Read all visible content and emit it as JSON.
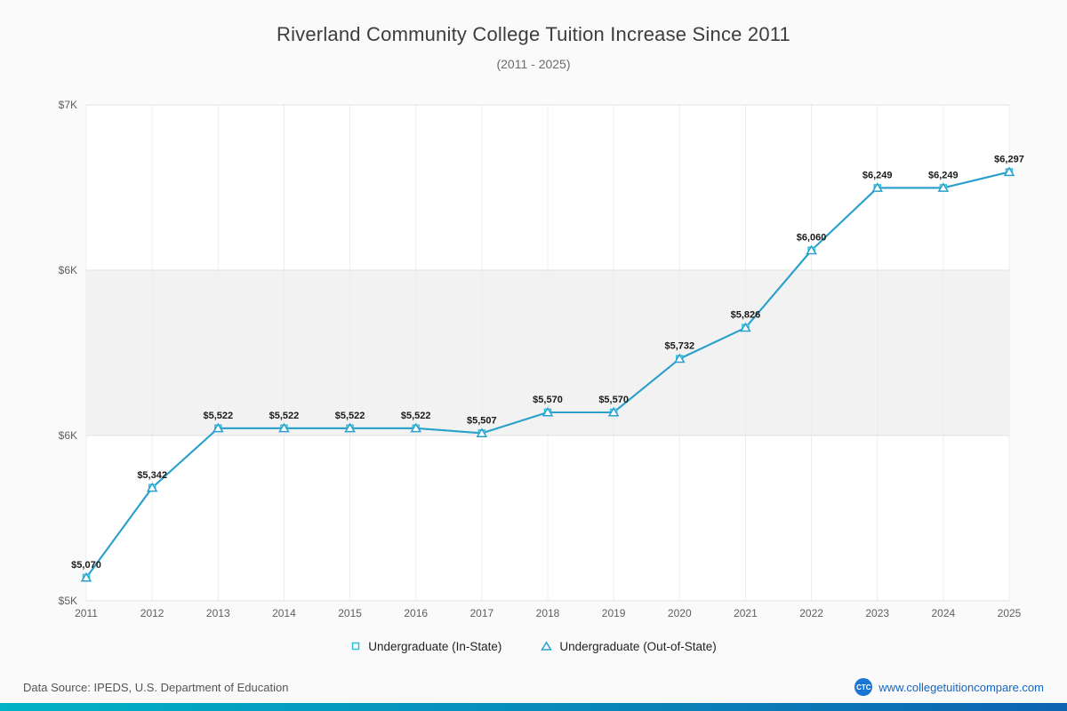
{
  "chart_data": {
    "type": "line",
    "title": "Riverland Community College Tuition Increase Since 2011",
    "subtitle": "(2011 - 2025)",
    "x": [
      2011,
      2012,
      2013,
      2014,
      2015,
      2016,
      2017,
      2018,
      2019,
      2020,
      2021,
      2022,
      2023,
      2024,
      2025
    ],
    "series": [
      {
        "name": "Undergraduate (In-State)",
        "color": "#29c0de",
        "marker": "square",
        "values": [
          5070,
          5342,
          5522,
          5522,
          5522,
          5522,
          5507,
          5570,
          5570,
          5732,
          5826,
          6060,
          6249,
          6249,
          6297
        ]
      },
      {
        "name": "Undergraduate (Out-of-State)",
        "color": "#2d9fcb",
        "marker": "triangle",
        "values": [
          5070,
          5342,
          5522,
          5522,
          5522,
          5522,
          5507,
          5570,
          5570,
          5732,
          5826,
          6060,
          6249,
          6249,
          6297
        ]
      }
    ],
    "data_labels": [
      "$5,070",
      "$5,342",
      "$5,522",
      "$5,522",
      "$5,522",
      "$5,522",
      "$5,507",
      "$5,570",
      "$5,570",
      "$5,732",
      "$5,826",
      "$6,060",
      "$6,249",
      "$6,249",
      "$6,297"
    ],
    "ylim": [
      5000,
      6500
    ],
    "y_ticks": [
      {
        "value": 5000,
        "label": "$5K"
      },
      {
        "value": 5500,
        "label": "$6K"
      },
      {
        "value": 6000,
        "label": "$6K"
      },
      {
        "value": 6500,
        "label": "$7K"
      }
    ],
    "band": {
      "from": 5500,
      "to": 6000,
      "color": "#f2f2f2"
    },
    "grid": {
      "horizontal": true,
      "vertical": true
    },
    "legend_position": "bottom",
    "xlabel": "",
    "ylabel": ""
  },
  "footer": {
    "source": "Data Source: IPEDS, U.S. Department of Education",
    "logo_text": "CTC",
    "site": "www.collegetuitioncompare.com"
  }
}
